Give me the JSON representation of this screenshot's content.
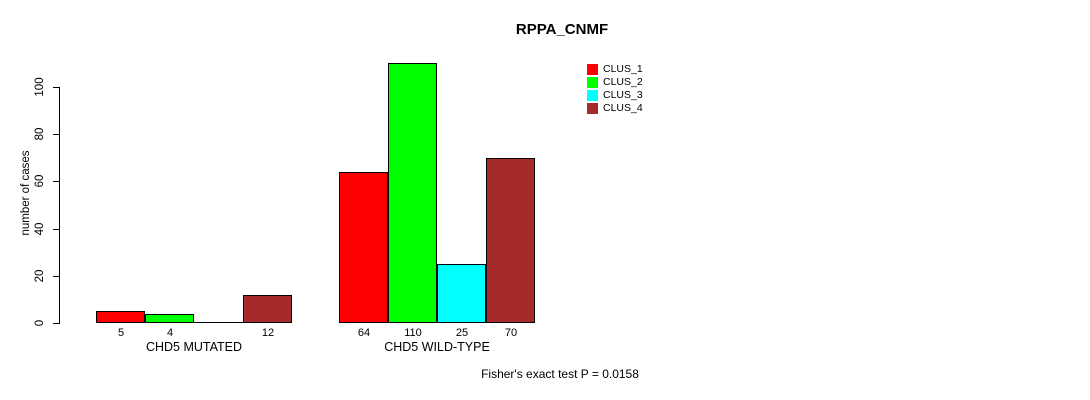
{
  "chart_data": {
    "type": "bar",
    "title": "RPPA_CNMF",
    "xlabel": "",
    "ylabel": "number of cases",
    "ylim": [
      0,
      110
    ],
    "yticks": [
      0,
      20,
      40,
      60,
      80,
      100
    ],
    "grid": false,
    "legend_position": "top-right",
    "categories": [
      "CHD5 MUTATED",
      "CHD5 WILD-TYPE"
    ],
    "series": [
      {
        "name": "CLUS_1",
        "color": "#ff0000",
        "values": [
          5,
          64
        ]
      },
      {
        "name": "CLUS_2",
        "color": "#00ff00",
        "values": [
          4,
          110
        ]
      },
      {
        "name": "CLUS_3",
        "color": "#00ffff",
        "values": [
          0,
          25
        ]
      },
      {
        "name": "CLUS_4",
        "color": "#a52a2a",
        "values": [
          12,
          70
        ]
      }
    ],
    "bar_value_labels": [
      [
        "5",
        "4",
        "",
        "12"
      ],
      [
        "64",
        "110",
        "25",
        "70"
      ]
    ],
    "annotation": "Fisher's exact test P = 0.0158"
  }
}
